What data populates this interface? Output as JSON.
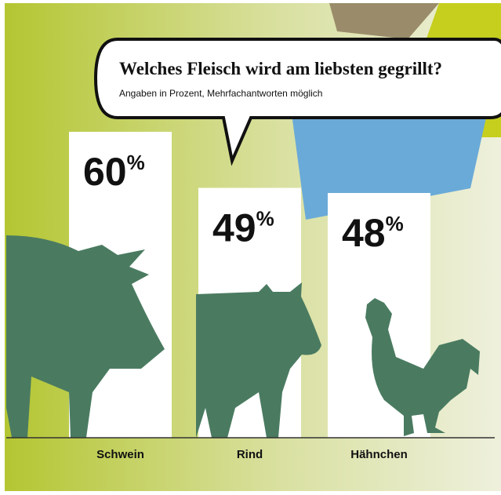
{
  "chart_data": {
    "type": "bar",
    "title": "Welches Fleisch wird am liebsten gegrillt?",
    "subtitle": "Angaben in Prozent, Mehrfachantworten möglich",
    "categories": [
      "Schwein",
      "Rind",
      "Hähnchen"
    ],
    "values": [
      60,
      49,
      48
    ],
    "value_labels": [
      "60%",
      "49%",
      "48%"
    ],
    "color": "#ffffff"
  }
}
